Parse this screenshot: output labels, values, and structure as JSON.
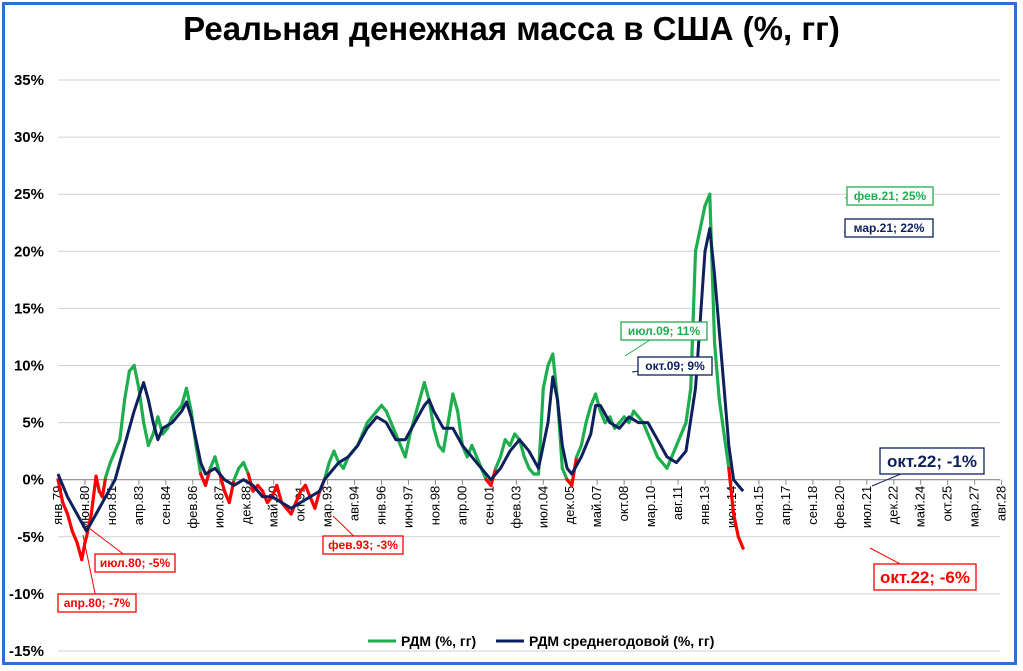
{
  "chart_data": {
    "type": "line",
    "title": "Реальная денежная масса в США (%, гг)",
    "y_ticks": [
      "35%",
      "30%",
      "25%",
      "20%",
      "15%",
      "10%",
      "5%",
      "0%",
      "-5%",
      "-10%",
      "-15%"
    ],
    "ylim": [
      -15,
      35
    ],
    "grid": true,
    "legend_position": "bottom",
    "x_tick_labels": [
      "янв.79",
      "июн.80",
      "ноя.81",
      "апр.83",
      "сен.84",
      "фев.86",
      "июл.87",
      "дек.88",
      "май.90",
      "окт.91",
      "мар.93",
      "авг.94",
      "янв.96",
      "июн.97",
      "ноя.98",
      "апр.00",
      "сен.01",
      "фев.03",
      "июл.04",
      "дек.05",
      "май.07",
      "окт.08",
      "мар.10",
      "авг.11",
      "янв.13",
      "июн.14",
      "ноя.15",
      "апр.17",
      "сен.18",
      "фев.20",
      "июл.21",
      "дек.22",
      "май.24",
      "окт.25",
      "мар.27",
      "авг.28"
    ],
    "series": [
      {
        "name": "РДМ (%, гг)",
        "color": "#1fae4f",
        "negative_color": "#ff0000",
        "points": [
          [
            0,
            0
          ],
          [
            3,
            -2
          ],
          [
            6,
            -3
          ],
          [
            9,
            -4.5
          ],
          [
            12,
            -5.5
          ],
          [
            15,
            -7
          ],
          [
            17,
            -5.5
          ],
          [
            18,
            -5
          ],
          [
            21,
            -3
          ],
          [
            24,
            0.3
          ],
          [
            26,
            -1
          ],
          [
            28,
            -1.5
          ],
          [
            30,
            0.2
          ],
          [
            33,
            1.5
          ],
          [
            36,
            2.5
          ],
          [
            39,
            3.5
          ],
          [
            42,
            7
          ],
          [
            45,
            9.5
          ],
          [
            48,
            10
          ],
          [
            51,
            8
          ],
          [
            54,
            5
          ],
          [
            57,
            3
          ],
          [
            60,
            4
          ],
          [
            63,
            5.5
          ],
          [
            66,
            4
          ],
          [
            69,
            4.5
          ],
          [
            72,
            5.5
          ],
          [
            75,
            6
          ],
          [
            78,
            6.5
          ],
          [
            81,
            8
          ],
          [
            84,
            6
          ],
          [
            87,
            3
          ],
          [
            90,
            0.5
          ],
          [
            93,
            -0.5
          ],
          [
            96,
            1
          ],
          [
            99,
            2
          ],
          [
            102,
            0.5
          ],
          [
            105,
            -1
          ],
          [
            108,
            -2
          ],
          [
            111,
            0
          ],
          [
            114,
            1
          ],
          [
            117,
            1.5
          ],
          [
            120,
            0.5
          ],
          [
            123,
            -1
          ],
          [
            126,
            -0.5
          ],
          [
            129,
            -1
          ],
          [
            132,
            -2
          ],
          [
            135,
            -1.5
          ],
          [
            138,
            -0.5
          ],
          [
            141,
            -2
          ],
          [
            144,
            -2.5
          ],
          [
            147,
            -3
          ],
          [
            150,
            -2
          ],
          [
            153,
            -1
          ],
          [
            156,
            -0.5
          ],
          [
            159,
            -1.5
          ],
          [
            162,
            -2.5
          ],
          [
            165,
            -1
          ],
          [
            168,
            0
          ],
          [
            171,
            1.5
          ],
          [
            174,
            2.5
          ],
          [
            177,
            1.5
          ],
          [
            180,
            1
          ],
          [
            183,
            2
          ],
          [
            186,
            2.5
          ],
          [
            189,
            3
          ],
          [
            192,
            4
          ],
          [
            195,
            5
          ],
          [
            198,
            5.5
          ],
          [
            201,
            6
          ],
          [
            204,
            6.5
          ],
          [
            207,
            6
          ],
          [
            210,
            5
          ],
          [
            213,
            4
          ],
          [
            216,
            3
          ],
          [
            219,
            2
          ],
          [
            222,
            4
          ],
          [
            225,
            5.5
          ],
          [
            228,
            7
          ],
          [
            231,
            8.5
          ],
          [
            234,
            7
          ],
          [
            237,
            4.5
          ],
          [
            240,
            3
          ],
          [
            243,
            2.5
          ],
          [
            246,
            5
          ],
          [
            249,
            7.5
          ],
          [
            252,
            6
          ],
          [
            255,
            3
          ],
          [
            258,
            2
          ],
          [
            261,
            3
          ],
          [
            264,
            2
          ],
          [
            267,
            1
          ],
          [
            270,
            0
          ],
          [
            273,
            -0.5
          ],
          [
            276,
            1
          ],
          [
            279,
            2
          ],
          [
            282,
            3.5
          ],
          [
            285,
            3
          ],
          [
            288,
            4
          ],
          [
            291,
            3.5
          ],
          [
            294,
            2
          ],
          [
            297,
            1
          ],
          [
            300,
            0.5
          ],
          [
            303,
            0.5
          ],
          [
            306,
            8
          ],
          [
            309,
            10
          ],
          [
            312,
            11
          ],
          [
            315,
            7
          ],
          [
            318,
            1
          ],
          [
            321,
            0
          ],
          [
            324,
            -0.5
          ],
          [
            327,
            2
          ],
          [
            330,
            3
          ],
          [
            333,
            5
          ],
          [
            336,
            6.5
          ],
          [
            339,
            7.5
          ],
          [
            342,
            6
          ],
          [
            345,
            5
          ],
          [
            348,
            5.5
          ],
          [
            351,
            4.5
          ],
          [
            354,
            5
          ],
          [
            357,
            5.5
          ],
          [
            360,
            5
          ],
          [
            363,
            6
          ],
          [
            366,
            5.5
          ],
          [
            369,
            5
          ],
          [
            372,
            4
          ],
          [
            375,
            3
          ],
          [
            378,
            2
          ],
          [
            381,
            1.5
          ],
          [
            384,
            1
          ],
          [
            387,
            2
          ],
          [
            390,
            3
          ],
          [
            393,
            4
          ],
          [
            396,
            5
          ],
          [
            399,
            8
          ],
          [
            402,
            20
          ],
          [
            405,
            22
          ],
          [
            408,
            24
          ],
          [
            411,
            25
          ],
          [
            414,
            12
          ],
          [
            417,
            7
          ],
          [
            420,
            4
          ],
          [
            423,
            1
          ],
          [
            426,
            -3
          ],
          [
            429,
            -5
          ],
          [
            432,
            -6
          ]
        ]
      },
      {
        "name": "РДМ среднегодовой (%, гг)",
        "color": "#0d1f5c",
        "points": [
          [
            0,
            0.5
          ],
          [
            6,
            -1.5
          ],
          [
            12,
            -3
          ],
          [
            18,
            -4.5
          ],
          [
            24,
            -3
          ],
          [
            30,
            -1.5
          ],
          [
            36,
            0
          ],
          [
            42,
            3
          ],
          [
            48,
            6
          ],
          [
            54,
            8.5
          ],
          [
            57,
            7
          ],
          [
            60,
            5
          ],
          [
            63,
            3.5
          ],
          [
            66,
            4.5
          ],
          [
            72,
            5
          ],
          [
            78,
            6
          ],
          [
            81,
            6.8
          ],
          [
            84,
            5.5
          ],
          [
            87,
            3.5
          ],
          [
            90,
            1.5
          ],
          [
            93,
            0.5
          ],
          [
            99,
            1
          ],
          [
            105,
            0
          ],
          [
            111,
            -0.5
          ],
          [
            117,
            0
          ],
          [
            123,
            -0.5
          ],
          [
            129,
            -1.5
          ],
          [
            135,
            -1.5
          ],
          [
            141,
            -2
          ],
          [
            147,
            -2.5
          ],
          [
            153,
            -2
          ],
          [
            159,
            -1.5
          ],
          [
            165,
            -1
          ],
          [
            168,
            0
          ],
          [
            171,
            0.5
          ],
          [
            177,
            1.5
          ],
          [
            183,
            2
          ],
          [
            189,
            3
          ],
          [
            195,
            4.5
          ],
          [
            201,
            5.5
          ],
          [
            207,
            5
          ],
          [
            213,
            3.5
          ],
          [
            219,
            3.5
          ],
          [
            225,
            5
          ],
          [
            231,
            6.5
          ],
          [
            234,
            7
          ],
          [
            237,
            6
          ],
          [
            243,
            4.5
          ],
          [
            249,
            4.5
          ],
          [
            255,
            3
          ],
          [
            261,
            2
          ],
          [
            267,
            1
          ],
          [
            273,
            0
          ],
          [
            279,
            1
          ],
          [
            285,
            2.5
          ],
          [
            291,
            3.5
          ],
          [
            297,
            2.5
          ],
          [
            303,
            1
          ],
          [
            309,
            5
          ],
          [
            312,
            9
          ],
          [
            315,
            7
          ],
          [
            318,
            3
          ],
          [
            321,
            1
          ],
          [
            324,
            0.5
          ],
          [
            330,
            2
          ],
          [
            336,
            4
          ],
          [
            339,
            6.5
          ],
          [
            342,
            6.5
          ],
          [
            348,
            5
          ],
          [
            354,
            4.5
          ],
          [
            360,
            5.5
          ],
          [
            366,
            5
          ],
          [
            372,
            5
          ],
          [
            378,
            3.5
          ],
          [
            384,
            2
          ],
          [
            390,
            1.5
          ],
          [
            396,
            2.5
          ],
          [
            402,
            8
          ],
          [
            405,
            14
          ],
          [
            408,
            20
          ],
          [
            411,
            22
          ],
          [
            414,
            18
          ],
          [
            417,
            13
          ],
          [
            420,
            8
          ],
          [
            423,
            3
          ],
          [
            426,
            0
          ],
          [
            429,
            -0.5
          ],
          [
            432,
            -1
          ]
        ]
      }
    ],
    "annotations": [
      {
        "label": "июл.80; -5%",
        "color": "#ff0000"
      },
      {
        "label": "апр.80; -7%",
        "color": "#ff0000"
      },
      {
        "label": "фев.93; -3%",
        "color": "#ff0000"
      },
      {
        "label": "июл.09; 11%",
        "color": "#1fae4f"
      },
      {
        "label": "окт.09; 9%",
        "color": "#0d1f5c"
      },
      {
        "label": "фев.21; 25%",
        "color": "#1fae4f"
      },
      {
        "label": "мар.21; 22%",
        "color": "#0d1f5c"
      },
      {
        "label": "окт.22; -1%",
        "color": "#0d1f5c"
      },
      {
        "label": "окт.22; -6%",
        "color": "#ff0000"
      }
    ]
  }
}
